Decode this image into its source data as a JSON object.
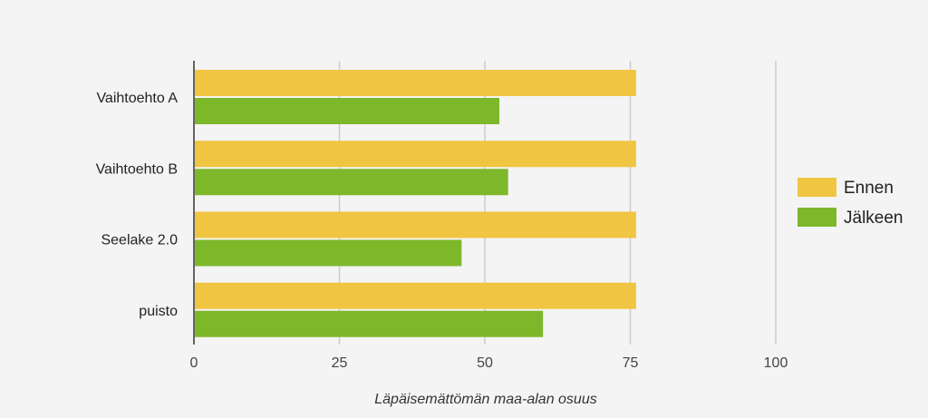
{
  "chart_data": {
    "type": "bar",
    "orientation": "horizontal",
    "categories": [
      "Vaihtoehto A",
      "Vaihtoehto B",
      "Seelake 2.0",
      "puisto"
    ],
    "series": [
      {
        "name": "Ennen",
        "color": "#f0c541",
        "values": [
          76,
          76,
          76,
          76
        ]
      },
      {
        "name": "Jälkeen",
        "color": "#7db82a",
        "values": [
          52.5,
          54,
          46,
          60
        ]
      }
    ],
    "xlabel": "Läpäisemättömän maa-alan osuus",
    "ylabel": "",
    "xlim": [
      0,
      100
    ],
    "xticks": [
      "0",
      "25",
      "50",
      "75",
      "100"
    ],
    "grid": true,
    "legend": "right"
  }
}
